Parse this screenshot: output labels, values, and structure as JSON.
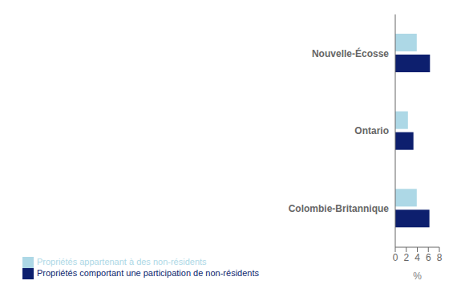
{
  "chart_data": {
    "type": "bar",
    "orientation": "horizontal",
    "categories": [
      "Colombie-Britannique",
      "Ontario",
      "Nouvelle-Écosse"
    ],
    "series": [
      {
        "name": "Propriétés appartenant à des non-résidents",
        "color": "#add8e6",
        "values": [
          3.9,
          2.3,
          3.9
        ]
      },
      {
        "name": "Propriétés comportant une participation de non-résidents",
        "color": "#0d1f6e",
        "values": [
          6.2,
          3.3,
          6.3
        ]
      }
    ],
    "xlabel": "%",
    "xlim": [
      0,
      8
    ],
    "xticks": [
      0,
      2,
      4,
      6,
      8
    ],
    "grid": false,
    "legend": "bottom"
  }
}
